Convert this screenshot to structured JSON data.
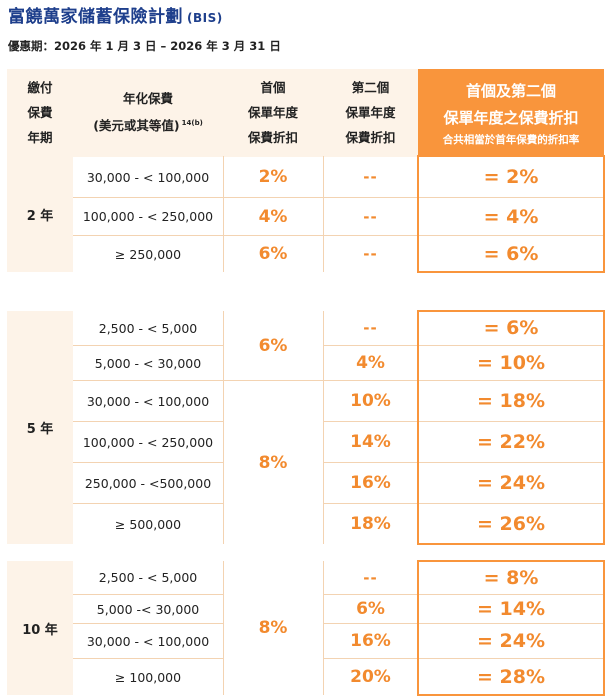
{
  "title": "富饒萬家儲蓄保險計劃",
  "title_code": "(BIS)",
  "offer_period": "優惠期：2026 年 1 月 3 日 – 2026 年 3 月 31 日",
  "header": {
    "term_lines": [
      "繳付",
      "保費",
      "年期"
    ],
    "premium_line1": "年化保費",
    "premium_line2": "(美元或其等值)",
    "premium_sup": "14(b)",
    "first_lines": [
      "首個",
      "保單年度",
      "保費折扣"
    ],
    "second_lines": [
      "第二個",
      "保單年度",
      "保費折扣"
    ],
    "total_line1": "首個及第二個",
    "total_line2": "保單年度之保費折扣",
    "total_note": "合共相當於首年保費的折扣率"
  },
  "sections": [
    {
      "term": "2 年",
      "rows": [
        {
          "premium": "30,000 - < 100,000",
          "first": "2%",
          "second": "--",
          "total": "= 2%"
        },
        {
          "premium": "100,000 - < 250,000",
          "first": "4%",
          "second": "--",
          "total": "= 4%"
        },
        {
          "premium": "≥ 250,000",
          "first": "6%",
          "second": "--",
          "total": "= 6%"
        }
      ]
    },
    {
      "term": "5 年",
      "first_groups": [
        "6%",
        "8%"
      ],
      "rows": [
        {
          "premium": "2,500 - < 5,000",
          "second": "--",
          "total": "= 6%"
        },
        {
          "premium": "5,000 - < 30,000",
          "second": "4%",
          "total": "= 10%"
        },
        {
          "premium": "30,000 - < 100,000",
          "second": "10%",
          "total": "= 18%"
        },
        {
          "premium": "100,000 - < 250,000",
          "second": "14%",
          "total": "= 22%"
        },
        {
          "premium": "250,000 - <500,000",
          "second": "16%",
          "total": "= 24%"
        },
        {
          "premium": "≥ 500,000",
          "second": "18%",
          "total": "= 26%"
        }
      ]
    },
    {
      "term": "10 年",
      "first": "8%",
      "rows": [
        {
          "premium": "2,500 - < 5,000",
          "second": "--",
          "total": "= 8%"
        },
        {
          "premium": "5,000 -< 30,000",
          "second": "6%",
          "total": "= 14%"
        },
        {
          "premium": "30,000 - < 100,000",
          "second": "16%",
          "total": "= 24%"
        },
        {
          "premium": "≥ 100,000",
          "second": "20%",
          "total": "= 28%"
        }
      ]
    }
  ]
}
